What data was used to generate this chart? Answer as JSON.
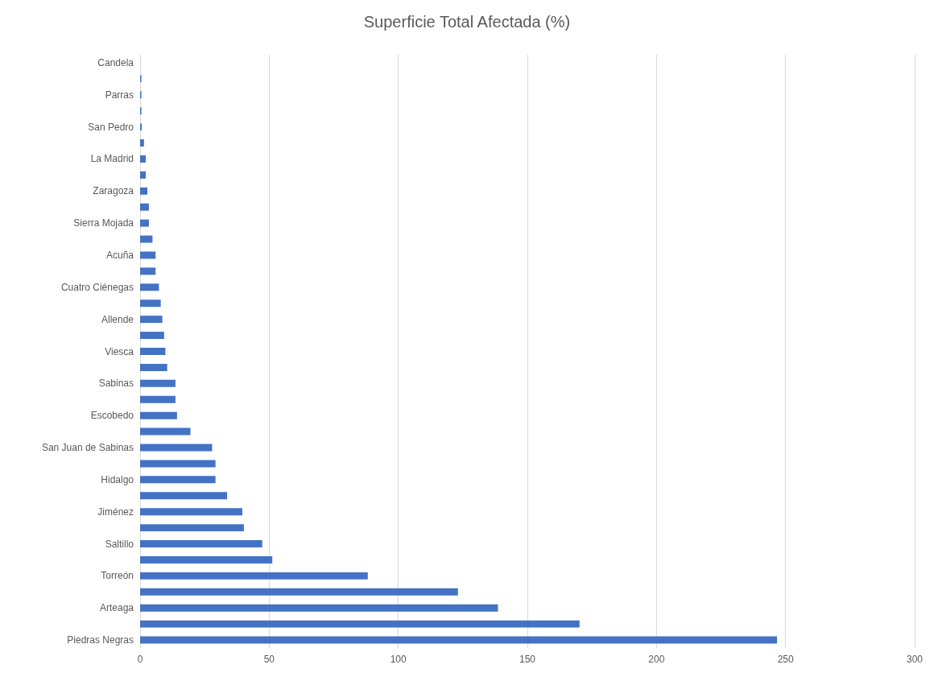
{
  "chart_data": {
    "type": "bar",
    "orientation": "horizontal",
    "title": "Superficie Total Afectada (%)",
    "categories": [
      "Candela",
      null,
      "Parras",
      null,
      "San Pedro",
      null,
      "La Madrid",
      null,
      "Zaragoza",
      null,
      "Sierra Mojada",
      null,
      "Acuña",
      null,
      "Cuatro Ciénegas",
      null,
      "Allende",
      null,
      "Viesca",
      null,
      "Sabinas",
      null,
      "Escobedo",
      null,
      "San Juan de Sabinas",
      null,
      "Hidalgo",
      null,
      "Jiménez",
      null,
      "Saltillo",
      null,
      "Torreón",
      null,
      "Arteaga",
      null,
      "Piedras Negras"
    ],
    "values": [
      0,
      0.5,
      0.5,
      0.5,
      0.6,
      1.5,
      2.2,
      2.2,
      2.8,
      3.4,
      3.4,
      4.8,
      6.0,
      6.0,
      7.3,
      8.0,
      8.6,
      9.3,
      9.8,
      10.5,
      13.7,
      13.7,
      14.3,
      19.5,
      27.9,
      29.2,
      29.2,
      33.7,
      39.6,
      40.2,
      47.3,
      51.2,
      88.2,
      123.1,
      138.6,
      170.2,
      246.7
    ],
    "color": "#4472c4",
    "xlim": [
      0,
      300
    ],
    "xticks": [
      0,
      50,
      100,
      150,
      200,
      250,
      300
    ],
    "grid": "x"
  }
}
